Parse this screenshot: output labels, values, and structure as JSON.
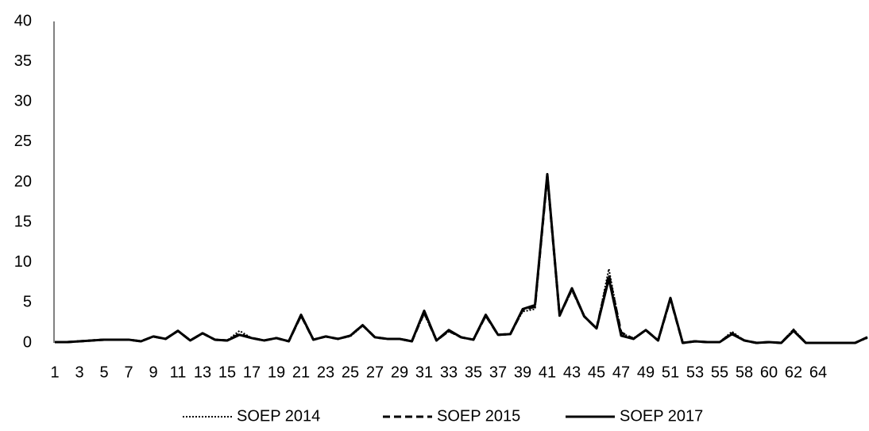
{
  "chart_data": {
    "type": "line",
    "categories": [
      "1",
      null,
      "3",
      null,
      "5",
      null,
      "7",
      null,
      "9",
      null,
      "11",
      null,
      "13",
      null,
      "15",
      null,
      "17",
      null,
      "19",
      null,
      "21",
      null,
      "23",
      null,
      "25",
      null,
      "27",
      null,
      "29",
      null,
      "31",
      null,
      "33",
      null,
      "35",
      null,
      "37",
      null,
      "39",
      null,
      "41",
      null,
      "43",
      null,
      "45",
      null,
      "47",
      null,
      "49",
      null,
      "51",
      null,
      "53",
      null,
      "55",
      null,
      "58",
      null,
      "60",
      null,
      "62",
      null,
      "64",
      null,
      null,
      null,
      null
    ],
    "series": [
      {
        "name": "SOEP 2014",
        "color": "#000000",
        "dash": "dotted",
        "values": [
          0.1,
          0.1,
          0.2,
          0.3,
          0.4,
          0.4,
          0.4,
          0.2,
          0.8,
          0.5,
          1.5,
          0.3,
          1.2,
          0.4,
          0.3,
          1.5,
          0.6,
          0.3,
          0.6,
          0.2,
          3.3,
          0.4,
          0.8,
          0.5,
          0.8,
          2.1,
          0.7,
          0.5,
          0.5,
          0.2,
          3.6,
          0.3,
          1.4,
          0.7,
          0.4,
          3.3,
          1.0,
          1.1,
          3.9,
          4.2,
          20.5,
          3.4,
          6.5,
          3.3,
          1.8,
          9.2,
          1.2,
          0.6,
          1.6,
          0.3,
          5.4,
          0.0,
          0.2,
          0.1,
          0.1,
          1.4,
          0.3,
          0.0,
          0.1,
          0.0,
          1.7,
          0.0,
          0.0,
          0.0,
          0.0,
          0.0,
          0.6
        ]
      },
      {
        "name": "SOEP 2015",
        "color": "#000000",
        "dash": "dashed",
        "values": [
          0.1,
          0.1,
          0.2,
          0.3,
          0.4,
          0.4,
          0.4,
          0.2,
          0.8,
          0.5,
          1.5,
          0.3,
          1.2,
          0.4,
          0.3,
          1.1,
          0.6,
          0.3,
          0.6,
          0.2,
          3.4,
          0.4,
          0.8,
          0.5,
          0.9,
          2.2,
          0.7,
          0.5,
          0.5,
          0.2,
          3.8,
          0.3,
          1.5,
          0.7,
          0.4,
          3.4,
          1.0,
          1.1,
          4.1,
          4.5,
          20.8,
          3.4,
          6.7,
          3.3,
          1.8,
          8.5,
          1.3,
          0.5,
          1.6,
          0.3,
          5.5,
          0.0,
          0.2,
          0.1,
          0.1,
          1.2,
          0.3,
          0.0,
          0.1,
          0.0,
          1.6,
          0.0,
          0.0,
          0.0,
          0.0,
          0.0,
          0.7
        ]
      },
      {
        "name": "SOEP 2017",
        "color": "#000000",
        "dash": "solid",
        "values": [
          0.1,
          0.1,
          0.2,
          0.3,
          0.4,
          0.4,
          0.4,
          0.2,
          0.8,
          0.5,
          1.5,
          0.3,
          1.2,
          0.4,
          0.3,
          1.0,
          0.6,
          0.3,
          0.6,
          0.2,
          3.5,
          0.4,
          0.8,
          0.5,
          0.9,
          2.2,
          0.7,
          0.5,
          0.5,
          0.2,
          4.0,
          0.3,
          1.6,
          0.7,
          0.4,
          3.5,
          1.0,
          1.1,
          4.2,
          4.7,
          21.0,
          3.4,
          6.8,
          3.3,
          1.8,
          8.0,
          0.9,
          0.5,
          1.6,
          0.3,
          5.6,
          0.0,
          0.2,
          0.1,
          0.1,
          1.1,
          0.3,
          0.0,
          0.1,
          0.0,
          1.5,
          0.0,
          0.0,
          0.0,
          0.0,
          0.0,
          0.7
        ]
      }
    ],
    "ylim": [
      0,
      40
    ],
    "yticks": [
      0,
      5,
      10,
      15,
      20,
      25,
      30,
      35,
      40
    ],
    "grid": false,
    "legend": "bottom"
  }
}
